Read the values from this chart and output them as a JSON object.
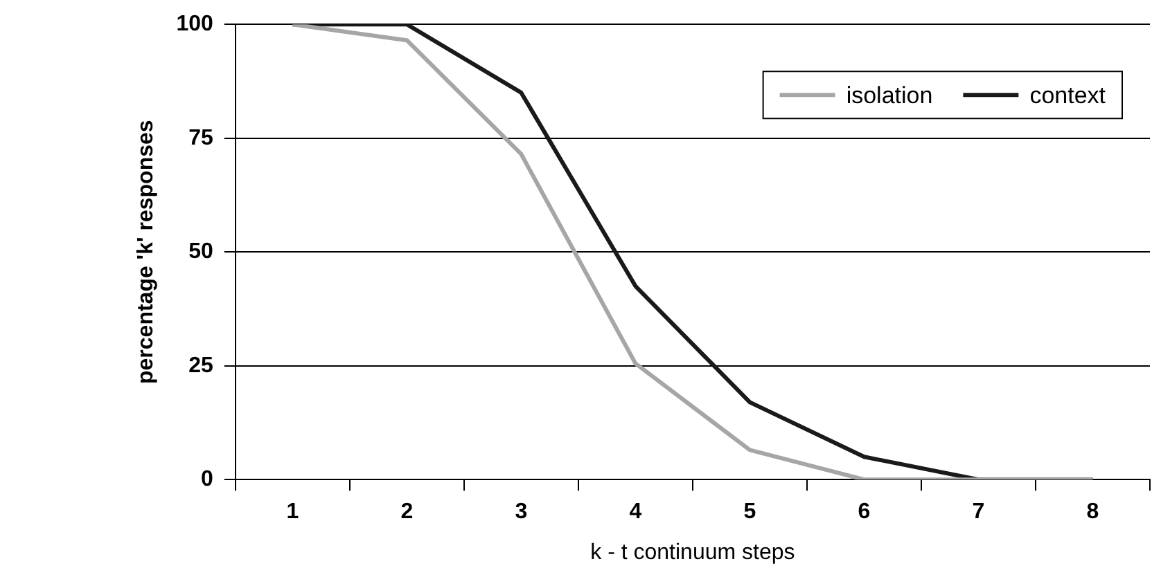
{
  "chart_data": {
    "type": "line",
    "xlabel": "k - t continuum steps",
    "ylabel": "percentage 'k' responses",
    "categories": [
      "1",
      "2",
      "3",
      "4",
      "5",
      "6",
      "7",
      "8"
    ],
    "series": [
      {
        "name": "isolation",
        "color": "#a6a6a6",
        "values": [
          100,
          96.5,
          71.5,
          25.5,
          6.5,
          0,
          0,
          0
        ]
      },
      {
        "name": "context",
        "color": "#1a1a1a",
        "values": [
          100,
          100,
          85,
          42.5,
          17,
          5,
          0,
          0
        ]
      }
    ],
    "ylim": [
      0,
      100
    ],
    "yticks": [
      0,
      25,
      50,
      75,
      100
    ],
    "grid": "y",
    "legend": "top right",
    "marker": "none",
    "line_style": "solid"
  }
}
